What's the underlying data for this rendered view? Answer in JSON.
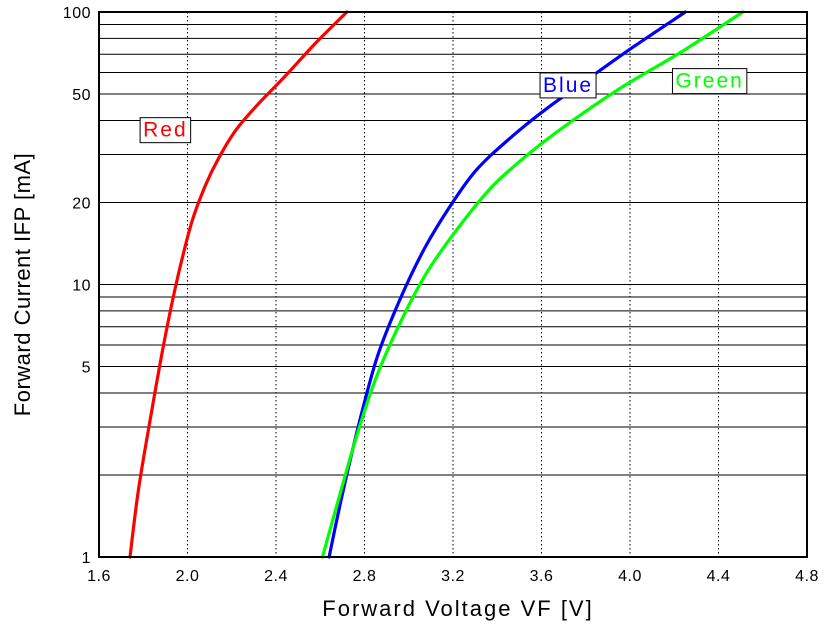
{
  "chart_data": {
    "type": "line",
    "xlabel": "Forward Voltage  VF [V]",
    "ylabel": "Forward Current  IFP [mA]",
    "xlim": [
      1.6,
      4.8
    ],
    "ylim": [
      1,
      100
    ],
    "y_scale": "log",
    "x_ticks": [
      "1.6",
      "2.0",
      "2.4",
      "2.8",
      "3.2",
      "3.6",
      "4.0",
      "4.4",
      "4.8"
    ],
    "y_ticks": [
      "1",
      "5",
      "10",
      "20",
      "50",
      "100"
    ],
    "grid": true,
    "series": [
      {
        "name": "Red",
        "color": "#ff0000",
        "x": [
          1.74,
          1.78,
          1.84,
          1.9,
          1.96,
          2.02,
          2.08,
          2.14,
          2.22,
          2.32,
          2.44,
          2.58,
          2.72
        ],
        "y": [
          1,
          1.8,
          3.5,
          6.5,
          11,
          17,
          23,
          29,
          37,
          46,
          58,
          77,
          100
        ]
      },
      {
        "name": "Blue",
        "color": "#0000ff",
        "x": [
          2.64,
          2.7,
          2.78,
          2.86,
          2.96,
          3.07,
          3.18,
          3.3,
          3.45,
          3.62,
          3.8,
          4.0,
          4.25
        ],
        "y": [
          1,
          1.7,
          3.2,
          5.5,
          8.8,
          13.5,
          19,
          26,
          34,
          44,
          56,
          73,
          100
        ]
      },
      {
        "name": "Green",
        "color": "#00ff00",
        "x": [
          2.61,
          2.68,
          2.76,
          2.85,
          2.96,
          3.08,
          3.22,
          3.38,
          3.56,
          3.76,
          3.98,
          4.24,
          4.51
        ],
        "y": [
          1,
          1.6,
          2.7,
          4.5,
          7.2,
          11,
          16,
          23,
          31,
          41,
          54,
          72,
          100
        ]
      }
    ]
  }
}
